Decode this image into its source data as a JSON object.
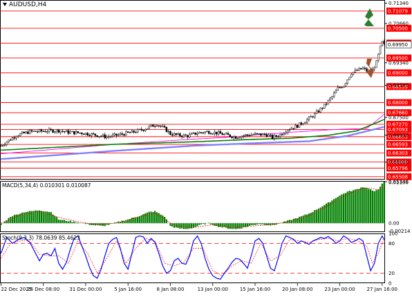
{
  "chart_data": [
    {
      "type": "candlestick",
      "panel": "price",
      "title": "AUDUSD,H4",
      "ylim": [
        0.6541,
        0.7145
      ],
      "ytick_labels": [
        "0.71340",
        "0.70660",
        "0.69340",
        "0.68580",
        "0.67500",
        "0.66900",
        "0.66000",
        "0.65340"
      ],
      "levels": [
        "0.71079",
        "0.70500",
        "0.70000",
        "0.69500",
        "0.69000",
        "0.68539",
        "0.68000",
        "0.67660",
        "0.67270",
        "0.67093",
        "0.66853",
        "0.66593",
        "0.66303",
        "0.66000",
        "0.65796",
        "0.65508"
      ],
      "current_price": "0.69950",
      "ma_series": [
        {
          "color": "#ff00ff",
          "path": [
            [
              0,
              0.6628
            ],
            [
              60,
              0.666
            ],
            [
              100,
              0.6677
            ],
            [
              120,
              0.6684
            ],
            [
              130,
              0.669
            ],
            [
              150,
              0.67
            ],
            [
              175,
              0.671
            ],
            [
              190,
              0.6713
            ],
            [
              199,
              0.676
            ]
          ]
        },
        {
          "color": "#008000",
          "path": [
            [
              0,
              0.664
            ],
            [
              60,
              0.666
            ],
            [
              100,
              0.6668
            ],
            [
              130,
              0.6676
            ],
            [
              150,
              0.668
            ],
            [
              170,
              0.669
            ],
            [
              185,
              0.6705
            ],
            [
              199,
              0.6743
            ]
          ]
        },
        {
          "color": "#8080ff",
          "path": [
            [
              0,
              0.661
            ],
            [
              60,
              0.6638
            ],
            [
              100,
              0.6655
            ],
            [
              130,
              0.6663
            ],
            [
              160,
              0.667
            ],
            [
              180,
              0.6688
            ],
            [
              199,
              0.6718
            ]
          ]
        }
      ],
      "price_path": [
        [
          0,
          0.6655
        ],
        [
          8,
          0.669
        ],
        [
          15,
          0.6702
        ],
        [
          25,
          0.6705
        ],
        [
          30,
          0.6706
        ],
        [
          35,
          0.67
        ],
        [
          42,
          0.6698
        ],
        [
          50,
          0.669
        ],
        [
          55,
          0.6685
        ],
        [
          60,
          0.669
        ],
        [
          68,
          0.67
        ],
        [
          74,
          0.671
        ],
        [
          78,
          0.672
        ],
        [
          81,
          0.6728
        ],
        [
          85,
          0.6712
        ],
        [
          88,
          0.6695
        ],
        [
          92,
          0.669
        ],
        [
          97,
          0.6688
        ],
        [
          102,
          0.6698
        ],
        [
          108,
          0.6702
        ],
        [
          112,
          0.6698
        ],
        [
          118,
          0.669
        ],
        [
          122,
          0.6684
        ],
        [
          127,
          0.669
        ],
        [
          132,
          0.6693
        ],
        [
          138,
          0.6692
        ],
        [
          141,
          0.6682
        ],
        [
          145,
          0.6692
        ],
        [
          149,
          0.671
        ],
        [
          154,
          0.6722
        ],
        [
          158,
          0.6738
        ],
        [
          163,
          0.676
        ],
        [
          168,
          0.679
        ],
        [
          172,
          0.682
        ],
        [
          175,
          0.6848
        ],
        [
          178,
          0.6858
        ],
        [
          182,
          0.69
        ],
        [
          185,
          0.6908
        ],
        [
          188,
          0.6915
        ],
        [
          191,
          0.6903
        ],
        [
          193,
          0.691
        ],
        [
          195,
          0.6935
        ],
        [
          197,
          0.6985
        ],
        [
          198,
          0.7002
        ],
        [
          199,
          0.6995
        ]
      ],
      "arrows": [
        {
          "direction": "up",
          "color": "#2e7d32"
        },
        {
          "direction": "down",
          "color": "#a0522d"
        }
      ]
    },
    {
      "type": "bar",
      "panel": "macd",
      "label": "MACD(5,34,4) 0.010301 0.010087",
      "ylim": [
        -0.0024,
        0.0114
      ],
      "ytick_labels": [
        "0.01106",
        "0.00",
        "-0.00214"
      ],
      "hist_path": [
        [
          0,
          -0.0005
        ],
        [
          5,
          0.0018
        ],
        [
          12,
          0.003
        ],
        [
          20,
          0.0035
        ],
        [
          26,
          0.003
        ],
        [
          30,
          0.001
        ],
        [
          35,
          0.0006
        ],
        [
          40,
          0.0002
        ],
        [
          45,
          -0.0003
        ],
        [
          48,
          -0.0005
        ],
        [
          53,
          -0.0008
        ],
        [
          56,
          -0.0004
        ],
        [
          60,
          0.0002
        ],
        [
          66,
          0.001
        ],
        [
          72,
          0.002
        ],
        [
          77,
          0.003
        ],
        [
          80,
          0.0032
        ],
        [
          85,
          0.0018
        ],
        [
          88,
          -0.0008
        ],
        [
          92,
          -0.0014
        ],
        [
          96,
          -0.0016
        ],
        [
          100,
          -0.0012
        ],
        [
          104,
          -0.0004
        ],
        [
          108,
          0.0
        ],
        [
          112,
          -0.0008
        ],
        [
          118,
          -0.0014
        ],
        [
          122,
          -0.0016
        ],
        [
          126,
          -0.0012
        ],
        [
          130,
          -0.0006
        ],
        [
          134,
          -0.0002
        ],
        [
          138,
          -0.0004
        ],
        [
          141,
          -0.0006
        ],
        [
          145,
          0.0
        ],
        [
          150,
          0.0008
        ],
        [
          155,
          0.0016
        ],
        [
          160,
          0.0026
        ],
        [
          165,
          0.004
        ],
        [
          170,
          0.0055
        ],
        [
          175,
          0.0072
        ],
        [
          180,
          0.0085
        ],
        [
          184,
          0.009
        ],
        [
          188,
          0.0098
        ],
        [
          191,
          0.0094
        ],
        [
          194,
          0.0085
        ],
        [
          196,
          0.0092
        ],
        [
          198,
          0.0108
        ],
        [
          199,
          0.011
        ]
      ],
      "signal_path": [
        [
          0,
          0.0
        ],
        [
          10,
          0.0022
        ],
        [
          20,
          0.0032
        ],
        [
          30,
          0.0016
        ],
        [
          40,
          0.0004
        ],
        [
          50,
          -0.0004
        ],
        [
          60,
          0.0
        ],
        [
          70,
          0.0015
        ],
        [
          80,
          0.0028
        ],
        [
          90,
          -0.0006
        ],
        [
          100,
          -0.0012
        ],
        [
          110,
          -0.0004
        ],
        [
          120,
          -0.0012
        ],
        [
          130,
          -0.0008
        ],
        [
          140,
          -0.0004
        ],
        [
          150,
          0.0004
        ],
        [
          160,
          0.002
        ],
        [
          170,
          0.0048
        ],
        [
          180,
          0.0078
        ],
        [
          188,
          0.0094
        ],
        [
          192,
          0.0095
        ],
        [
          196,
          0.009
        ],
        [
          199,
          0.0101
        ]
      ]
    },
    {
      "type": "line",
      "panel": "stoch",
      "label": "Stoch(9,3,3) 78.0639 85.4623",
      "ylim": [
        0,
        100
      ],
      "ytick_labels": [
        "100",
        "80",
        "20",
        "0"
      ],
      "levels": [
        80,
        20
      ],
      "main_path": [
        [
          0,
          60
        ],
        [
          3,
          92
        ],
        [
          6,
          80
        ],
        [
          9,
          88
        ],
        [
          12,
          92
        ],
        [
          15,
          82
        ],
        [
          18,
          60
        ],
        [
          20,
          45
        ],
        [
          22,
          58
        ],
        [
          24,
          60
        ],
        [
          26,
          55
        ],
        [
          28,
          70
        ],
        [
          30,
          40
        ],
        [
          32,
          28
        ],
        [
          34,
          42
        ],
        [
          36,
          68
        ],
        [
          38,
          90
        ],
        [
          40,
          95
        ],
        [
          42,
          75
        ],
        [
          44,
          55
        ],
        [
          46,
          32
        ],
        [
          48,
          15
        ],
        [
          50,
          10
        ],
        [
          52,
          28
        ],
        [
          54,
          55
        ],
        [
          56,
          80
        ],
        [
          58,
          88
        ],
        [
          60,
          92
        ],
        [
          62,
          70
        ],
        [
          64,
          40
        ],
        [
          66,
          28
        ],
        [
          68,
          60
        ],
        [
          70,
          92
        ],
        [
          72,
          95
        ],
        [
          74,
          93
        ],
        [
          76,
          80
        ],
        [
          78,
          90
        ],
        [
          80,
          82
        ],
        [
          82,
          60
        ],
        [
          84,
          35
        ],
        [
          86,
          20
        ],
        [
          88,
          25
        ],
        [
          90,
          45
        ],
        [
          92,
          50
        ],
        [
          94,
          40
        ],
        [
          96,
          38
        ],
        [
          98,
          55
        ],
        [
          100,
          85
        ],
        [
          102,
          95
        ],
        [
          104,
          80
        ],
        [
          106,
          50
        ],
        [
          108,
          28
        ],
        [
          110,
          15
        ],
        [
          112,
          10
        ],
        [
          114,
          8
        ],
        [
          116,
          20
        ],
        [
          118,
          30
        ],
        [
          120,
          42
        ],
        [
          122,
          50
        ],
        [
          124,
          48
        ],
        [
          126,
          40
        ],
        [
          128,
          30
        ],
        [
          130,
          55
        ],
        [
          132,
          85
        ],
        [
          134,
          90
        ],
        [
          136,
          80
        ],
        [
          138,
          55
        ],
        [
          140,
          30
        ],
        [
          142,
          25
        ],
        [
          144,
          50
        ],
        [
          146,
          80
        ],
        [
          148,
          95
        ],
        [
          150,
          92
        ],
        [
          152,
          88
        ],
        [
          154,
          80
        ],
        [
          156,
          85
        ],
        [
          158,
          82
        ],
        [
          160,
          78
        ],
        [
          162,
          85
        ],
        [
          164,
          88
        ],
        [
          166,
          92
        ],
        [
          168,
          90
        ],
        [
          170,
          94
        ],
        [
          172,
          88
        ],
        [
          174,
          80
        ],
        [
          176,
          85
        ],
        [
          178,
          95
        ],
        [
          180,
          90
        ],
        [
          182,
          82
        ],
        [
          184,
          85
        ],
        [
          186,
          90
        ],
        [
          188,
          85
        ],
        [
          190,
          55
        ],
        [
          192,
          25
        ],
        [
          194,
          40
        ],
        [
          196,
          80
        ],
        [
          198,
          95
        ],
        [
          199,
          88
        ]
      ],
      "signal_path": [
        [
          0,
          50
        ],
        [
          5,
          80
        ],
        [
          10,
          85
        ],
        [
          15,
          85
        ],
        [
          20,
          58
        ],
        [
          25,
          55
        ],
        [
          30,
          55
        ],
        [
          35,
          40
        ],
        [
          40,
          85
        ],
        [
          45,
          60
        ],
        [
          50,
          20
        ],
        [
          55,
          50
        ],
        [
          60,
          85
        ],
        [
          65,
          40
        ],
        [
          70,
          70
        ],
        [
          75,
          90
        ],
        [
          80,
          85
        ],
        [
          85,
          40
        ],
        [
          90,
          35
        ],
        [
          95,
          42
        ],
        [
          100,
          70
        ],
        [
          105,
          70
        ],
        [
          110,
          25
        ],
        [
          115,
          15
        ],
        [
          120,
          35
        ],
        [
          125,
          45
        ],
        [
          130,
          40
        ],
        [
          135,
          80
        ],
        [
          140,
          45
        ],
        [
          145,
          55
        ],
        [
          150,
          88
        ],
        [
          155,
          85
        ],
        [
          160,
          82
        ],
        [
          165,
          88
        ],
        [
          170,
          90
        ],
        [
          175,
          85
        ],
        [
          180,
          90
        ],
        [
          185,
          86
        ],
        [
          190,
          75
        ],
        [
          193,
          40
        ],
        [
          196,
          60
        ],
        [
          199,
          90
        ]
      ]
    }
  ],
  "x_axis": {
    "labels": [
      "22 Dec 2025",
      "26 Dec 08:00",
      "31 Dec 00:00",
      "5 Jan 16:00",
      "8 Jan 08:00",
      "13 Jan 00:00",
      "15 Jan 16:00",
      "20 Jan 08:00",
      "23 Jan 00:00",
      "27 Jan 16:00"
    ]
  },
  "colors": {
    "bull": "#008000",
    "bear": "#000000",
    "level": "#ff0000",
    "price_tag": "#ff0000",
    "macd_hist": "#008000",
    "macd_signal": "#ff0000",
    "stoch_main": "#0000ff",
    "stoch_signal": "#ff0000",
    "grid_border": "#000000"
  }
}
